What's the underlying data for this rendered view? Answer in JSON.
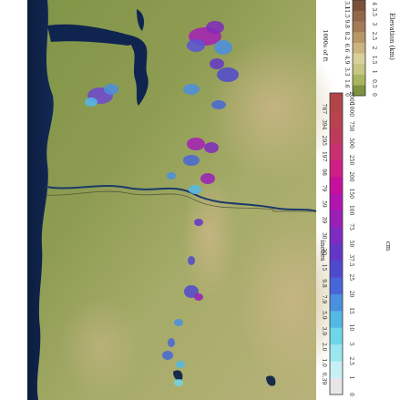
{
  "colorbars": {
    "elevation": {
      "label": "Elevation (km)",
      "unit_label": "1000s of ft",
      "km_ticks": [
        "0",
        "0.5",
        "1",
        "1.5",
        "2",
        "2.5",
        "3",
        "3.5",
        "4"
      ],
      "ft_ticks": [
        "0",
        "1.6",
        "3.3",
        "4.9",
        "6.6",
        "8.2",
        "9.8",
        "11.5",
        "13.1"
      ],
      "colors": [
        "#7d9342",
        "#a9b461",
        "#c7c583",
        "#d8cf99",
        "#cdb47f",
        "#b89668",
        "#a47b56",
        "#94674a",
        "#7a5138"
      ]
    },
    "precipitation": {
      "label_left": "inches",
      "label_right": "cm",
      "inch_ticks": [
        "0.39",
        "1.0",
        "2.0",
        "3.9",
        "5.9",
        "7.9",
        "9.8",
        "15",
        "20",
        "30",
        "39",
        "59",
        "79",
        "98",
        "197",
        "295",
        "394",
        "787"
      ],
      "cm_ticks": [
        "0",
        "1",
        "2.5",
        "5",
        "10",
        "15",
        "20",
        "25",
        "37.5",
        "50",
        "75",
        "100",
        "150",
        "200",
        "250",
        "500",
        "750",
        "1000",
        "2000"
      ],
      "colors": [
        "#e6e6e6",
        "#c6f0f4",
        "#9be6ef",
        "#6fd6e8",
        "#53b8e6",
        "#4a8fe0",
        "#4766d8",
        "#4f49cf",
        "#6436c8",
        "#7f2ac0",
        "#9a1fb8",
        "#b214b0",
        "#c60f9c",
        "#cf1f86",
        "#c9306f",
        "#be3a5b",
        "#b8424d",
        "#b04447"
      ]
    }
  }
}
